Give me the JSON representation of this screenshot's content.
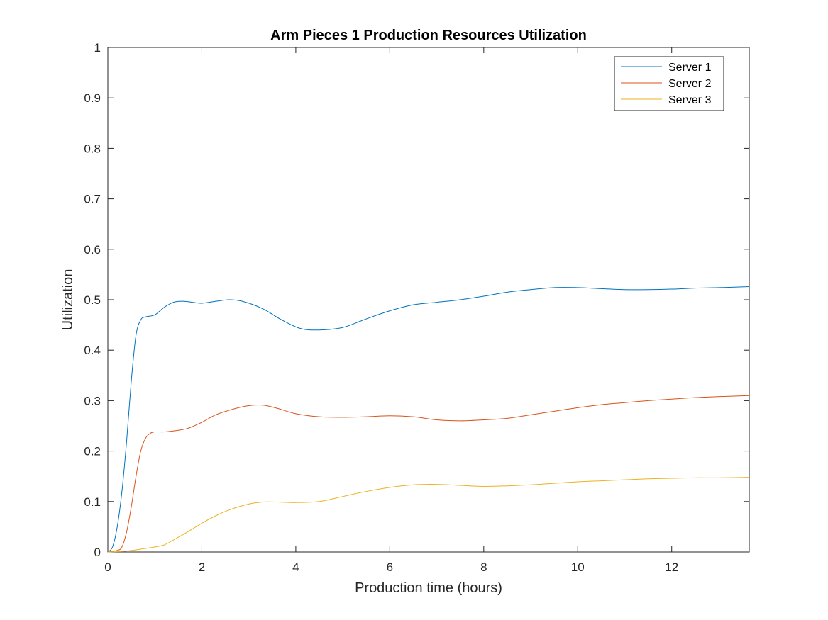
{
  "chart_data": {
    "type": "line",
    "title": "Arm Pieces 1 Production Resources Utilization",
    "xlabel": "Production time (hours)",
    "ylabel": "Utilization",
    "xlim": [
      0,
      13.65
    ],
    "ylim": [
      0,
      1
    ],
    "xticks": [
      "0",
      "2",
      "4",
      "6",
      "8",
      "10",
      "12"
    ],
    "yticks": [
      "0",
      "0.1",
      "0.2",
      "0.3",
      "0.4",
      "0.5",
      "0.6",
      "0.7",
      "0.8",
      "0.9",
      "1"
    ],
    "grid": false,
    "legend_position": "top-right",
    "series": [
      {
        "name": "Server 1",
        "color": "#0072BD",
        "x": [
          0,
          0.1,
          0.2,
          0.3,
          0.4,
          0.5,
          0.6,
          0.7,
          0.8,
          1.0,
          1.2,
          1.4,
          1.6,
          1.8,
          2.0,
          2.3,
          2.6,
          2.9,
          3.3,
          3.7,
          4.1,
          4.5,
          5.0,
          5.5,
          6.0,
          6.5,
          7.0,
          7.5,
          8.0,
          8.5,
          9.0,
          9.5,
          10.0,
          10.5,
          11.0,
          11.5,
          12.0,
          12.5,
          13.0,
          13.65
        ],
        "y": [
          0,
          0.01,
          0.05,
          0.12,
          0.22,
          0.34,
          0.43,
          0.46,
          0.466,
          0.47,
          0.485,
          0.495,
          0.497,
          0.495,
          0.493,
          0.497,
          0.5,
          0.496,
          0.482,
          0.46,
          0.443,
          0.44,
          0.445,
          0.462,
          0.478,
          0.49,
          0.495,
          0.5,
          0.507,
          0.515,
          0.52,
          0.524,
          0.524,
          0.522,
          0.52,
          0.52,
          0.521,
          0.523,
          0.524,
          0.526
        ]
      },
      {
        "name": "Server 2",
        "color": "#D95319",
        "x": [
          0,
          0.2,
          0.3,
          0.4,
          0.5,
          0.6,
          0.7,
          0.8,
          0.9,
          1.0,
          1.2,
          1.4,
          1.7,
          2.0,
          2.3,
          2.7,
          3.0,
          3.3,
          3.6,
          4.0,
          4.5,
          5.0,
          5.5,
          6.0,
          6.5,
          7.0,
          7.5,
          8.0,
          8.5,
          9.0,
          9.5,
          10.0,
          10.5,
          11.0,
          11.5,
          12.0,
          12.5,
          13.0,
          13.65
        ],
        "y": [
          0,
          0.003,
          0.01,
          0.04,
          0.09,
          0.15,
          0.2,
          0.225,
          0.235,
          0.238,
          0.238,
          0.24,
          0.245,
          0.257,
          0.272,
          0.284,
          0.29,
          0.291,
          0.285,
          0.274,
          0.268,
          0.267,
          0.268,
          0.27,
          0.268,
          0.262,
          0.26,
          0.262,
          0.265,
          0.272,
          0.279,
          0.286,
          0.292,
          0.296,
          0.3,
          0.303,
          0.306,
          0.308,
          0.31
        ]
      },
      {
        "name": "Server 3",
        "color": "#EDB120",
        "x": [
          0,
          0.3,
          0.5,
          0.8,
          1.0,
          1.2,
          1.4,
          1.7,
          2.0,
          2.3,
          2.6,
          3.0,
          3.3,
          3.6,
          4.0,
          4.5,
          5.0,
          5.5,
          6.0,
          6.5,
          7.0,
          7.5,
          8.0,
          8.5,
          9.0,
          9.5,
          10.0,
          10.5,
          11.0,
          11.5,
          12.0,
          12.5,
          13.0,
          13.65
        ],
        "y": [
          0,
          0.001,
          0.003,
          0.007,
          0.01,
          0.014,
          0.024,
          0.04,
          0.057,
          0.072,
          0.084,
          0.095,
          0.099,
          0.099,
          0.098,
          0.1,
          0.11,
          0.12,
          0.128,
          0.133,
          0.134,
          0.132,
          0.13,
          0.131,
          0.133,
          0.136,
          0.139,
          0.141,
          0.143,
          0.145,
          0.146,
          0.147,
          0.147,
          0.148
        ]
      }
    ]
  }
}
